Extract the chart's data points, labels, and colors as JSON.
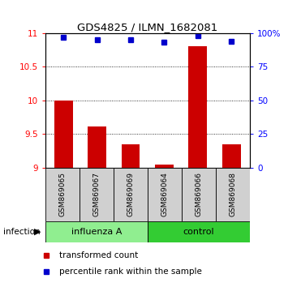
{
  "title": "GDS4825 / ILMN_1682081",
  "samples": [
    "GSM869065",
    "GSM869067",
    "GSM869069",
    "GSM869064",
    "GSM869066",
    "GSM869068"
  ],
  "transformed_counts": [
    10.0,
    9.62,
    9.35,
    9.05,
    10.8,
    9.35
  ],
  "percentile_ranks": [
    97,
    95,
    95,
    93,
    98,
    94
  ],
  "ylim_left": [
    9.0,
    11.0
  ],
  "ylim_right": [
    0,
    100
  ],
  "yticks_left": [
    9.0,
    9.5,
    10.0,
    10.5,
    11.0
  ],
  "yticks_right": [
    0,
    25,
    50,
    75,
    100
  ],
  "bar_color": "#CC0000",
  "dot_color": "#0000CC",
  "infection_label": "infection",
  "legend_bar_label": "transformed count",
  "legend_dot_label": "percentile rank within the sample",
  "group_spans": [
    [
      0,
      3,
      "influenza A",
      "#90EE90"
    ],
    [
      3,
      6,
      "control",
      "#33CC33"
    ]
  ],
  "label_bg": "#D0D0D0"
}
